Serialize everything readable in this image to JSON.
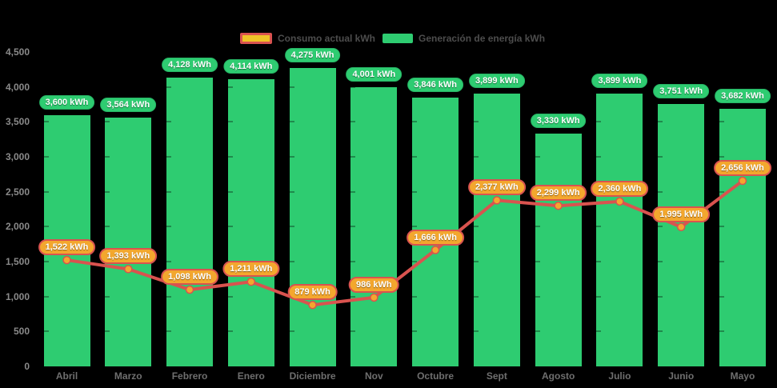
{
  "chart_data": {
    "type": "bar",
    "categories": [
      "Abril",
      "Marzo",
      "Febrero",
      "Enero",
      "Diciembre",
      "Nov",
      "Octubre",
      "Sept",
      "Agosto",
      "Julio",
      "Junio",
      "Mayo"
    ],
    "series": [
      {
        "name": "Consumo actual kWh",
        "type": "line",
        "values": [
          1522,
          1393,
          1098,
          1211,
          879,
          986,
          1666,
          2377,
          2299,
          2360,
          1995,
          2656
        ],
        "labels": [
          "1,522 kWh",
          "1,393 kWh",
          "1,098 kWh",
          "1,211 kWh",
          "879 kWh",
          "986 kWh",
          "1,666 kWh",
          "2,377 kWh",
          "2,299 kWh",
          "2,360 kWh",
          "1,995 kWh",
          "2,656 kWh"
        ]
      },
      {
        "name": "Generación de energía kWh",
        "type": "bar",
        "values": [
          3600,
          3564,
          4128,
          4114,
          4275,
          4001,
          3846,
          3899,
          3330,
          3899,
          3751,
          3682
        ],
        "labels": [
          "3,600 kWh",
          "3,564 kWh",
          "4,128 kWh",
          "4,114 kWh",
          "4,275 kWh",
          "4,001 kWh",
          "3,846 kWh",
          "3,899 kWh",
          "3,330 kWh",
          "3,899 kWh",
          "3,751 kWh",
          "3,682 kWh"
        ]
      }
    ],
    "unit": "kWh",
    "ylim": [
      0,
      4500
    ],
    "ytick_step": 500,
    "yticks": [
      "0",
      "500",
      "1,000",
      "1,500",
      "2,000",
      "2,500",
      "3,000",
      "3,500",
      "4,000",
      "4,500"
    ],
    "grid": false,
    "legend_position": "top-center"
  },
  "colors": {
    "background": "#000000",
    "bar_green": "#2ecc71",
    "bar_pill_border": "#26b364",
    "line_red": "#d9534f",
    "marker_orange": "#f3a72e",
    "pill_orange_fill": "#f3a72e",
    "legend_swatch_yellow": "#eec327",
    "axis_text": "#8a8a8a",
    "month_text": "#6f6f6f",
    "legend_text": "#4d4d4d"
  }
}
